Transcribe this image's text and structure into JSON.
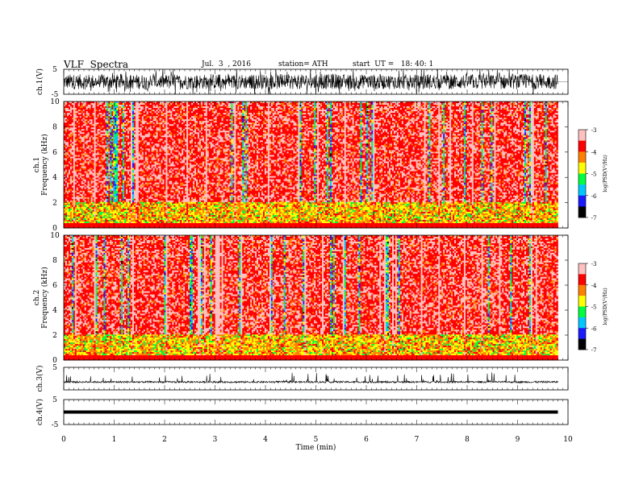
{
  "header": {
    "title": "VLF  Spectra",
    "date": "Jul.  3  , 2016",
    "station": "station= ATH",
    "start": "start  UT =   18: 40: 1"
  },
  "chart_data": {
    "type": "heatmap",
    "x_axis": {
      "label": "Time  (min)",
      "range": [
        0,
        10
      ],
      "ticks": [
        0,
        1,
        2,
        3,
        4,
        5,
        6,
        7,
        8,
        9,
        10
      ],
      "data_end": 9.8
    },
    "panels": [
      {
        "kind": "waveform",
        "ylabel": "ch.1(V)",
        "ylim": [
          -5,
          5
        ],
        "yticks": [
          "5",
          "-5"
        ],
        "color": "#000000"
      },
      {
        "kind": "spectrogram",
        "ylabel_line1": "ch.1",
        "ylabel_line2": "Frequency  (kHz)",
        "ylim": [
          0,
          10
        ],
        "yticks": [
          "0",
          "2",
          "4",
          "6",
          "8",
          "10"
        ],
        "colorbar": {
          "label": "log(PSD(V²/Hz)",
          "range": [
            -7,
            -3
          ],
          "ticks": [
            "-3",
            "-4",
            "-5",
            "-6",
            "-7"
          ]
        }
      },
      {
        "kind": "spectrogram",
        "ylabel_line1": "ch.2",
        "ylabel_line2": "Frequency  (kHz)",
        "ylim": [
          0,
          10
        ],
        "yticks": [
          "0",
          "2",
          "4",
          "6",
          "8",
          "10"
        ],
        "colorbar": {
          "label": "log(PSD(V²/Hz)",
          "range": [
            -7,
            -3
          ],
          "ticks": [
            "-3",
            "-4",
            "-5",
            "-6",
            "-7"
          ]
        }
      },
      {
        "kind": "waveform",
        "ylabel": "ch.3(V)",
        "ylim": [
          -5,
          5
        ],
        "yticks": [
          "5"
        ],
        "color": "#000000"
      },
      {
        "kind": "waveform",
        "ylabel": "ch.4(V)",
        "ylim": [
          -5,
          5
        ],
        "yticks": [
          "5",
          "-5"
        ],
        "color": "#000000"
      }
    ],
    "colormap": [
      "#000000",
      "#1a1aff",
      "#00c8ff",
      "#00ff40",
      "#ffff00",
      "#ff8000",
      "#ff0000",
      "#ffc0c0",
      "#ffffff"
    ],
    "grid": false
  }
}
